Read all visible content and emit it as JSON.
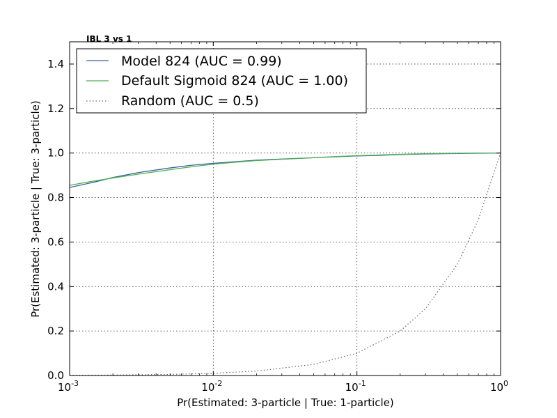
{
  "chart_data": {
    "type": "line",
    "title": "IBL 3 vs 1",
    "xlabel": "Pr(Estimated: 3-particle | True: 1-particle)",
    "ylabel": "Pr(Estimated: 3-particle | True: 3-particle)",
    "xscale": "log",
    "xlim": [
      0.001,
      1
    ],
    "ylim": [
      0,
      1.5
    ],
    "grid": true,
    "legend_position": "top-left",
    "x_ticks": [
      {
        "value": 0.001,
        "base": "10",
        "exp": "-3"
      },
      {
        "value": 0.01,
        "base": "10",
        "exp": "-2"
      },
      {
        "value": 0.1,
        "base": "10",
        "exp": "-1"
      },
      {
        "value": 1,
        "base": "10",
        "exp": "0"
      }
    ],
    "y_ticks": [
      "0.0",
      "0.2",
      "0.4",
      "0.6",
      "0.8",
      "1.0",
      "1.2",
      "1.4"
    ],
    "series": [
      {
        "name": "Model 824 (AUC = 0.99)",
        "color": "#3b5fa0",
        "style": "solid",
        "x": [
          0.001,
          0.0015,
          0.002,
          0.003,
          0.005,
          0.007,
          0.01,
          0.015,
          0.02,
          0.03,
          0.05,
          0.07,
          0.1,
          0.15,
          0.2,
          0.3,
          0.5,
          0.7,
          1
        ],
        "y": [
          0.845,
          0.87,
          0.89,
          0.912,
          0.933,
          0.945,
          0.954,
          0.962,
          0.968,
          0.973,
          0.979,
          0.983,
          0.987,
          0.99,
          0.993,
          0.996,
          0.998,
          0.999,
          1.0
        ]
      },
      {
        "name": "Default Sigmoid 824 (AUC = 1.00)",
        "color": "#4caf50",
        "style": "solid",
        "x": [
          0.001,
          0.0015,
          0.002,
          0.003,
          0.005,
          0.007,
          0.01,
          0.015,
          0.02,
          0.03,
          0.05,
          0.07,
          0.1,
          0.15,
          0.2,
          0.3,
          0.5,
          0.7,
          1
        ],
        "y": [
          0.855,
          0.875,
          0.888,
          0.905,
          0.925,
          0.938,
          0.95,
          0.96,
          0.966,
          0.972,
          0.979,
          0.984,
          0.988,
          0.992,
          0.994,
          0.997,
          0.999,
          1.0,
          1.0
        ]
      },
      {
        "name": "Random (AUC = 0.5)",
        "color": "#666666",
        "style": "dotted",
        "x": [
          0.001,
          0.002,
          0.005,
          0.01,
          0.02,
          0.05,
          0.1,
          0.2,
          0.3,
          0.5,
          0.7,
          1
        ],
        "y": [
          0.001,
          0.002,
          0.005,
          0.01,
          0.02,
          0.05,
          0.1,
          0.2,
          0.3,
          0.5,
          0.7,
          1.0
        ]
      }
    ]
  }
}
